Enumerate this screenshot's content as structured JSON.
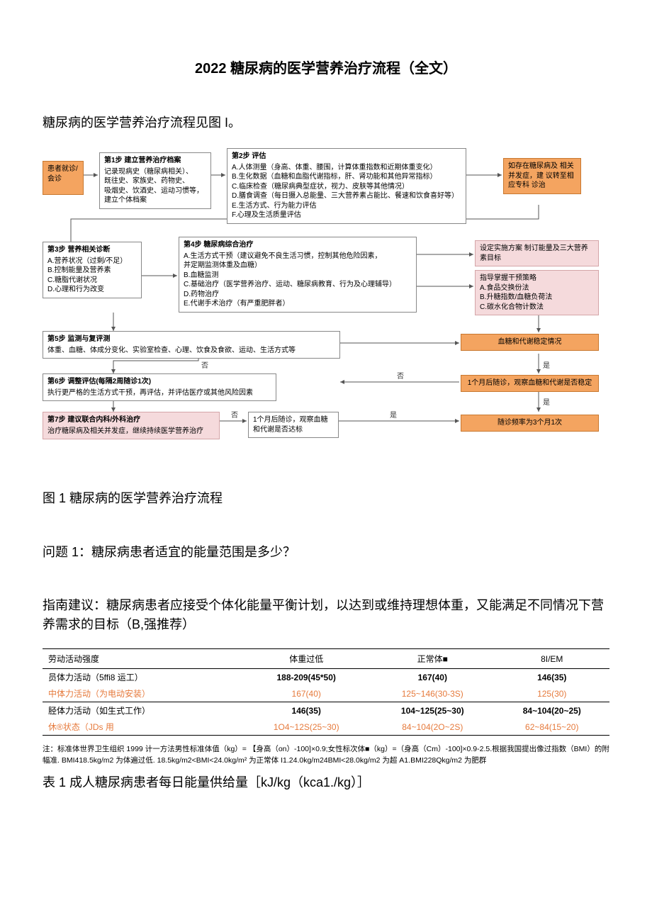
{
  "title": "2022 糖尿病的医学营养治疗流程（全文）",
  "intro": "糖尿病的医学营养治疗流程见图 I。",
  "flowchart": {
    "colors": {
      "orange": "#f4a460",
      "pink": "#f5dadc",
      "border": "#888888",
      "arrow": "#555555"
    },
    "nodes": {
      "n0": {
        "title": "",
        "body": "患者就诊/\n会诊"
      },
      "n1": {
        "title": "第1步 建立营养治疗档案",
        "body": "记录现病史（糖尿病相关）、\n既往史、家族史、药物史、\n吸烟史、饮酒史、运动习惯等，\n建立个体档案"
      },
      "n2": {
        "title": "第2步 评估",
        "body": "A.人体测量（身高、体重、腰围，计算体重指数和近期体重变化）\nB.生化数据（血糖和血脂代谢指标，肝、肾功能和其他异常指标）\nC.临床检查（糖尿病典型症状，视力、皮肤等其他情况）\nD.膳食调查（每日摄入总能量、三大营养素占能比、餐速和饮食喜好等）\nE.生活方式、行为能力评估\nF.心理及生活质量评估"
      },
      "n3": {
        "title": "",
        "body": "如存在糖尿病及\n相关并发症，建\n议转至相应专科\n诊治"
      },
      "n4": {
        "title": "第3步 营养相关诊断",
        "body": "A.营养状况（过剩/不足）\nB.控制能量及营养素\nC.糖脂代谢状况\nD.心理和行为改变"
      },
      "n5": {
        "title": "第4步 糖尿病综合治疗",
        "body": "A.生活方式干预（建议避免不良生活习惯，控制其他危险因素，\n   并定期监测体重及血糖）\nB.血糖监测\nC.基础治疗（医学营养治疗、运动、糖尿病教育、行为及心理辅导）\nD.药物治疗\nE.代谢手术治疗（有严重肥胖者）"
      },
      "n6a": {
        "title": "",
        "body": "设定实施方案\n制订能量及三大营养素目标"
      },
      "n6b": {
        "title": "",
        "body": "指导掌握干预策略\nA.食品交换份法\nB.升糖指数/血糖负荷法\nC.碳水化合物计数法"
      },
      "n7": {
        "title": "第5步 监测与复评测",
        "body": "体重、血糖、体成分变化、实验室检查、心理、饮食及食欲、运动、生活方式等"
      },
      "n8": {
        "title": "",
        "body": "血糖和代谢稳定情况"
      },
      "n9": {
        "title": "第6步 调整评估(每隔2周随诊1次)",
        "body": "执行更严格的生活方式干预，再评估，并评估医疗或其他风险因素"
      },
      "n10": {
        "title": "",
        "body": "1个月后随诊，观察血糖和代谢是否稳定"
      },
      "n11": {
        "title": "第7步 建议联合内科/外科治疗",
        "body": "治疗糖尿病及相关并发症，继续持续医学营养治疗"
      },
      "n12": {
        "title": "",
        "body": "1个月后随诊，观察血糖\n和代谢是否达标"
      },
      "n13": {
        "title": "",
        "body": "随诊频率为3个月1次"
      }
    },
    "labels": {
      "yes": "是",
      "no": "否"
    }
  },
  "caption": "图 1 糖尿病的医学营养治疗流程",
  "question": "问题 1：糖尿病患者适宜的能量范围是多少？",
  "guide": "指南建议：糖尿病患者应接受个体化能量平衡计划，以达到或维持理想体重，又能满足不同情况下营养需求的目标（B,强推荐）",
  "table": {
    "headers": [
      "劳动活动强度",
      "体重过低",
      "正常体■",
      "8I/EM"
    ],
    "rows": [
      {
        "cells": [
          "员体力活动（5ffi8 运工）",
          "188-209(45*50)",
          "167(40)",
          "146(35)"
        ],
        "bold": true
      },
      {
        "cells": [
          "中体力活动（为电动安装）",
          "167(40)",
          "125~146(30-3S)",
          "125(30)"
        ],
        "alt": true
      },
      {
        "cells": [
          "胫体力活动（如生式工作）",
          "146(35)",
          "104~125(25~30)",
          "84~104(20~25)"
        ],
        "bold": true,
        "sep": true
      },
      {
        "cells": [
          "休®状态（JDs 用",
          "1O4~12S(25~30)",
          "84~104(2O~2S)",
          "62~84(15~20)"
        ],
        "alt": true
      }
    ]
  },
  "note": "注：标准体世界卫生组织 1999 计一方法男性标准体值（kg）= 【身高（on）-100]×0.9;女性标次体■（kg）=（身高（Cm）-100]×0.9-2.5.根据我国提出像过指数（BMI）的附幅准. BMI418.5kg/m2 为体遍过低. 18.5kg/m2<BMI<24.0kg/m² 为正常体 I1.24.0kg/m24BMI<28.0kg/m2 为超 A1.BMI228Qkg/m2 为肥群",
  "tableCaption": "表 1 成人糖尿病患者每日能量供给量［kJ/kg（kca1./kg）］"
}
